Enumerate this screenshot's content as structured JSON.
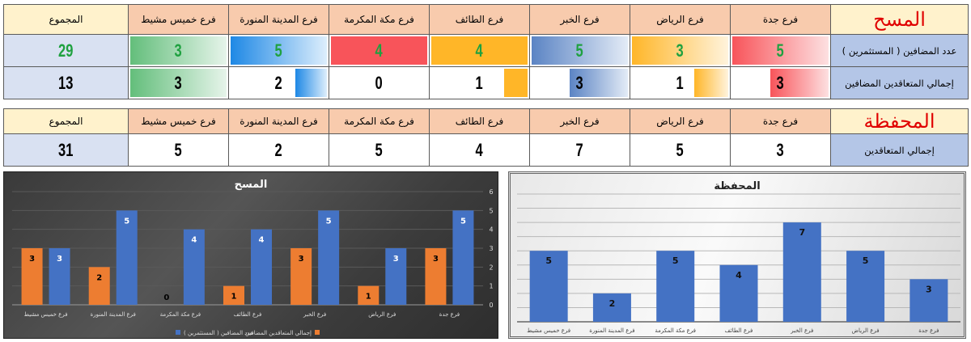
{
  "colors": {
    "header_bg": "#f8cbad",
    "title_bg": "#fff2cc",
    "label_bg": "#b4c6e7",
    "total_bg": "#d9e1f2",
    "title_text": "#e00000",
    "green_text": "#1fa140",
    "series_blue": "#4472c4",
    "series_orange": "#ed7d31"
  },
  "table1": {
    "title": "المسح",
    "headers": [
      "فرع جدة",
      "فرع الرياض",
      "فرع الخبر",
      "فرع الطائف",
      "فرع مكة المكرمة",
      "فرع المدينة المنورة",
      "فرع خميس مشيط",
      "المجموع"
    ],
    "rows": [
      {
        "label": "عدد المضافين ( المستثمرين )",
        "values": [
          "5",
          "3",
          "5",
          "4",
          "4",
          "5",
          "3",
          "29"
        ]
      },
      {
        "label": "إجمالي المتعاقدين المضافين",
        "values": [
          "3",
          "1",
          "3",
          "1",
          "0",
          "2",
          "3",
          "13"
        ]
      }
    ]
  },
  "table2": {
    "title": "المحفظة",
    "headers": [
      "فرع جدة",
      "فرع الرياض",
      "فرع الخبر",
      "فرع الطائف",
      "فرع مكة المكرمة",
      "فرع المدينة المنورة",
      "فرع خميس مشيط",
      "المجموع"
    ],
    "rows": [
      {
        "label": "إجمالي المتعاقدين",
        "values": [
          "3",
          "5",
          "7",
          "4",
          "5",
          "2",
          "5",
          "31"
        ]
      }
    ]
  },
  "chart_data": [
    {
      "type": "bar",
      "title": "المسح",
      "categories": [
        "فرع خميس مشيط",
        "فرع المدينة المنورة",
        "فرع مكة المكرمة",
        "فرع الطائف",
        "فرع الخبر",
        "فرع الرياض",
        "فرع جدة"
      ],
      "series": [
        {
          "name": "إجمالي المتعاقدين المضافين",
          "color": "#ed7d31",
          "values": [
            3,
            2,
            0,
            1,
            3,
            1,
            3
          ]
        },
        {
          "name": "عدد المضافين ( المستثمرين )",
          "color": "#4472c4",
          "values": [
            3,
            5,
            4,
            4,
            5,
            3,
            5
          ]
        }
      ],
      "yticks": [
        "0",
        "1",
        "2",
        "3",
        "4",
        "5",
        "6"
      ],
      "ylim": [
        0,
        6
      ],
      "y_axis_position": "right",
      "grid": true,
      "legend_position": "bottom",
      "background": "dark"
    },
    {
      "type": "bar",
      "title": "المحفظة",
      "categories": [
        "فرع خميس مشيط",
        "فرع المدينة المنورة",
        "فرع مكة المكرمة",
        "فرع الطائف",
        "فرع الخبر",
        "فرع الرياض",
        "فرع جدة"
      ],
      "series": [
        {
          "name": "إجمالي المتعاقدين",
          "color": "#4472c4",
          "values": [
            5,
            2,
            5,
            4,
            7,
            5,
            3
          ]
        }
      ],
      "ylim": [
        0,
        8
      ],
      "grid": true,
      "legend_position": "none",
      "background": "light"
    }
  ]
}
